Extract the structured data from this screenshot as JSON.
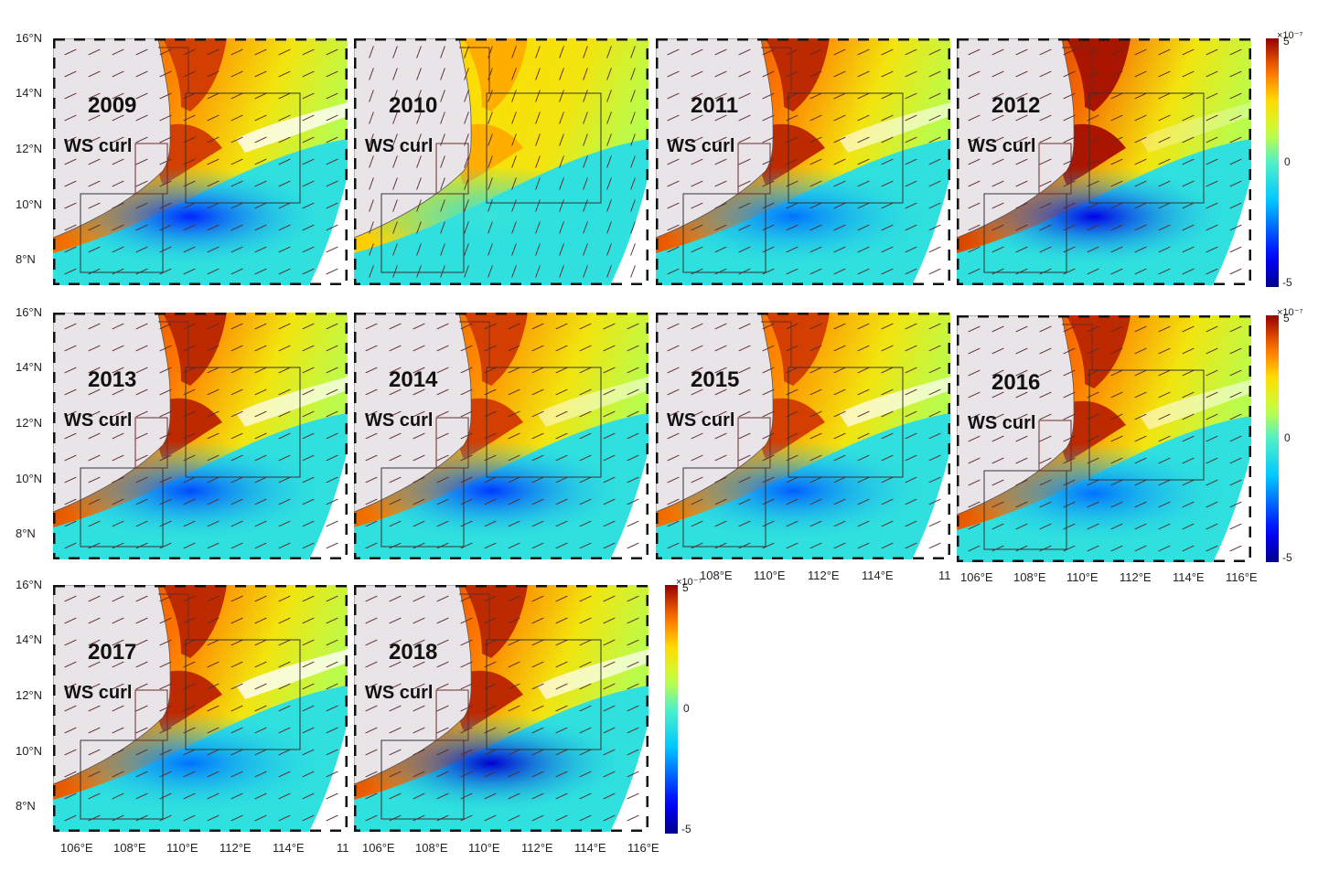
{
  "panels": [
    {
      "year": "2009",
      "label": "WS curl",
      "neg": 0.75,
      "pos": 0.85,
      "white": 0.6,
      "vecRot": -25
    },
    {
      "year": "2010",
      "label": "WS curl",
      "neg": 0.1,
      "pos": 0.6,
      "white": 0.05,
      "vecRot": -70
    },
    {
      "year": "2011",
      "label": "WS curl",
      "neg": 0.55,
      "pos": 0.9,
      "white": 0.4,
      "vecRot": -25
    },
    {
      "year": "2012",
      "label": "WS curl",
      "neg": 0.9,
      "pos": 0.95,
      "white": 0.1,
      "vecRot": -25
    },
    {
      "year": "2013",
      "label": "WS curl",
      "neg": 0.65,
      "pos": 0.9,
      "white": 0.5,
      "vecRot": -25
    },
    {
      "year": "2014",
      "label": "WS curl",
      "neg": 0.7,
      "pos": 0.85,
      "white": 0.3,
      "vecRot": -25
    },
    {
      "year": "2015",
      "label": "WS curl",
      "neg": 0.6,
      "pos": 0.85,
      "white": 0.5,
      "vecRot": -25
    },
    {
      "year": "2016",
      "label": "WS curl",
      "neg": 0.55,
      "pos": 0.9,
      "white": 0.35,
      "vecRot": -25
    },
    {
      "year": "2017",
      "label": "WS curl",
      "neg": 0.55,
      "pos": 0.9,
      "white": 0.6,
      "vecRot": -25
    },
    {
      "year": "2018",
      "label": "WS curl",
      "neg": 0.95,
      "pos": 0.9,
      "white": 0.5,
      "vecRot": -25
    }
  ],
  "lat_labels": [
    "16°N",
    "14°N",
    "12°N",
    "10°N",
    "8°N"
  ],
  "lon_labels": [
    "106°E",
    "108°E",
    "110°E",
    "112°E",
    "114°E",
    "116°E"
  ],
  "lon_labels_row2": [
    "108°E",
    "110°E",
    "112°E",
    "114°E"
  ],
  "lon_label_clipped_row2": "11",
  "lon_label_clipped_row3": "11",
  "colorbar": {
    "exponent": "×10⁻⁷",
    "max": "5",
    "mid": "0",
    "min": "-5"
  }
}
